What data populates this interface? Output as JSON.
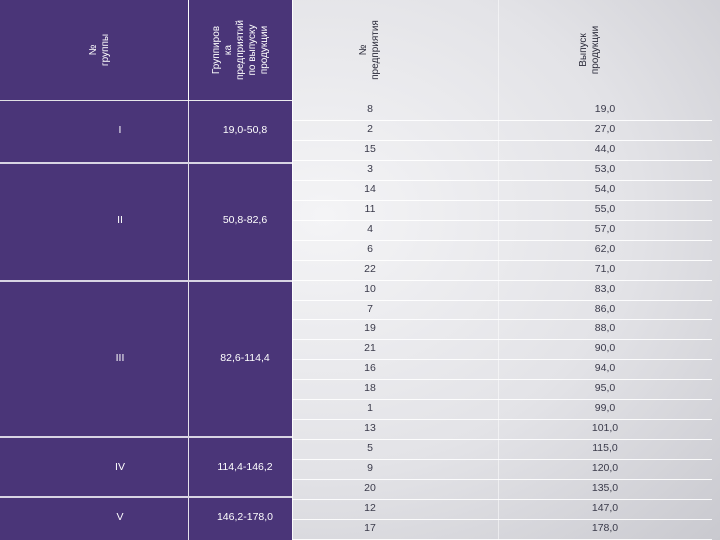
{
  "headers": {
    "group_no": "№ группы",
    "grouping": "Группиров\nка\nпредприятий\nпо выпуску\nпродукции",
    "enterprise_no": "№\nпредприятия",
    "output": "Выпуск\nпродукции"
  },
  "groups": [
    {
      "label": "I",
      "range": "19,0-50,8"
    },
    {
      "label": "II",
      "range": "50,8-82,6"
    },
    {
      "label": "III",
      "range": "82,6-114,4"
    },
    {
      "label": "IV",
      "range": "114,4-146,2"
    },
    {
      "label": "V",
      "range": "146,2-178,0"
    }
  ],
  "rows": [
    {
      "id": "8",
      "value": "19,0"
    },
    {
      "id": "2",
      "value": "27,0"
    },
    {
      "id": "15",
      "value": "44,0"
    },
    {
      "id": "3",
      "value": "53,0"
    },
    {
      "id": "14",
      "value": "54,0"
    },
    {
      "id": "11",
      "value": "55,0"
    },
    {
      "id": "4",
      "value": "57,0"
    },
    {
      "id": "6",
      "value": "62,0"
    },
    {
      "id": "22",
      "value": "71,0"
    },
    {
      "id": "10",
      "value": "83,0"
    },
    {
      "id": "7",
      "value": "86,0"
    },
    {
      "id": "19",
      "value": "88,0"
    },
    {
      "id": "21",
      "value": "90,0"
    },
    {
      "id": "16",
      "value": "94,0"
    },
    {
      "id": "18",
      "value": "95,0"
    },
    {
      "id": "1",
      "value": "99,0"
    },
    {
      "id": "13",
      "value": "101,0"
    },
    {
      "id": "5",
      "value": "115,0"
    },
    {
      "id": "9",
      "value": "120,0"
    },
    {
      "id": "20",
      "value": "135,0"
    },
    {
      "id": "12",
      "value": "147,0"
    },
    {
      "id": "17",
      "value": "178,0"
    }
  ],
  "colors": {
    "header_purple": "#4a3578",
    "text_dark": "#3a3a4a"
  }
}
